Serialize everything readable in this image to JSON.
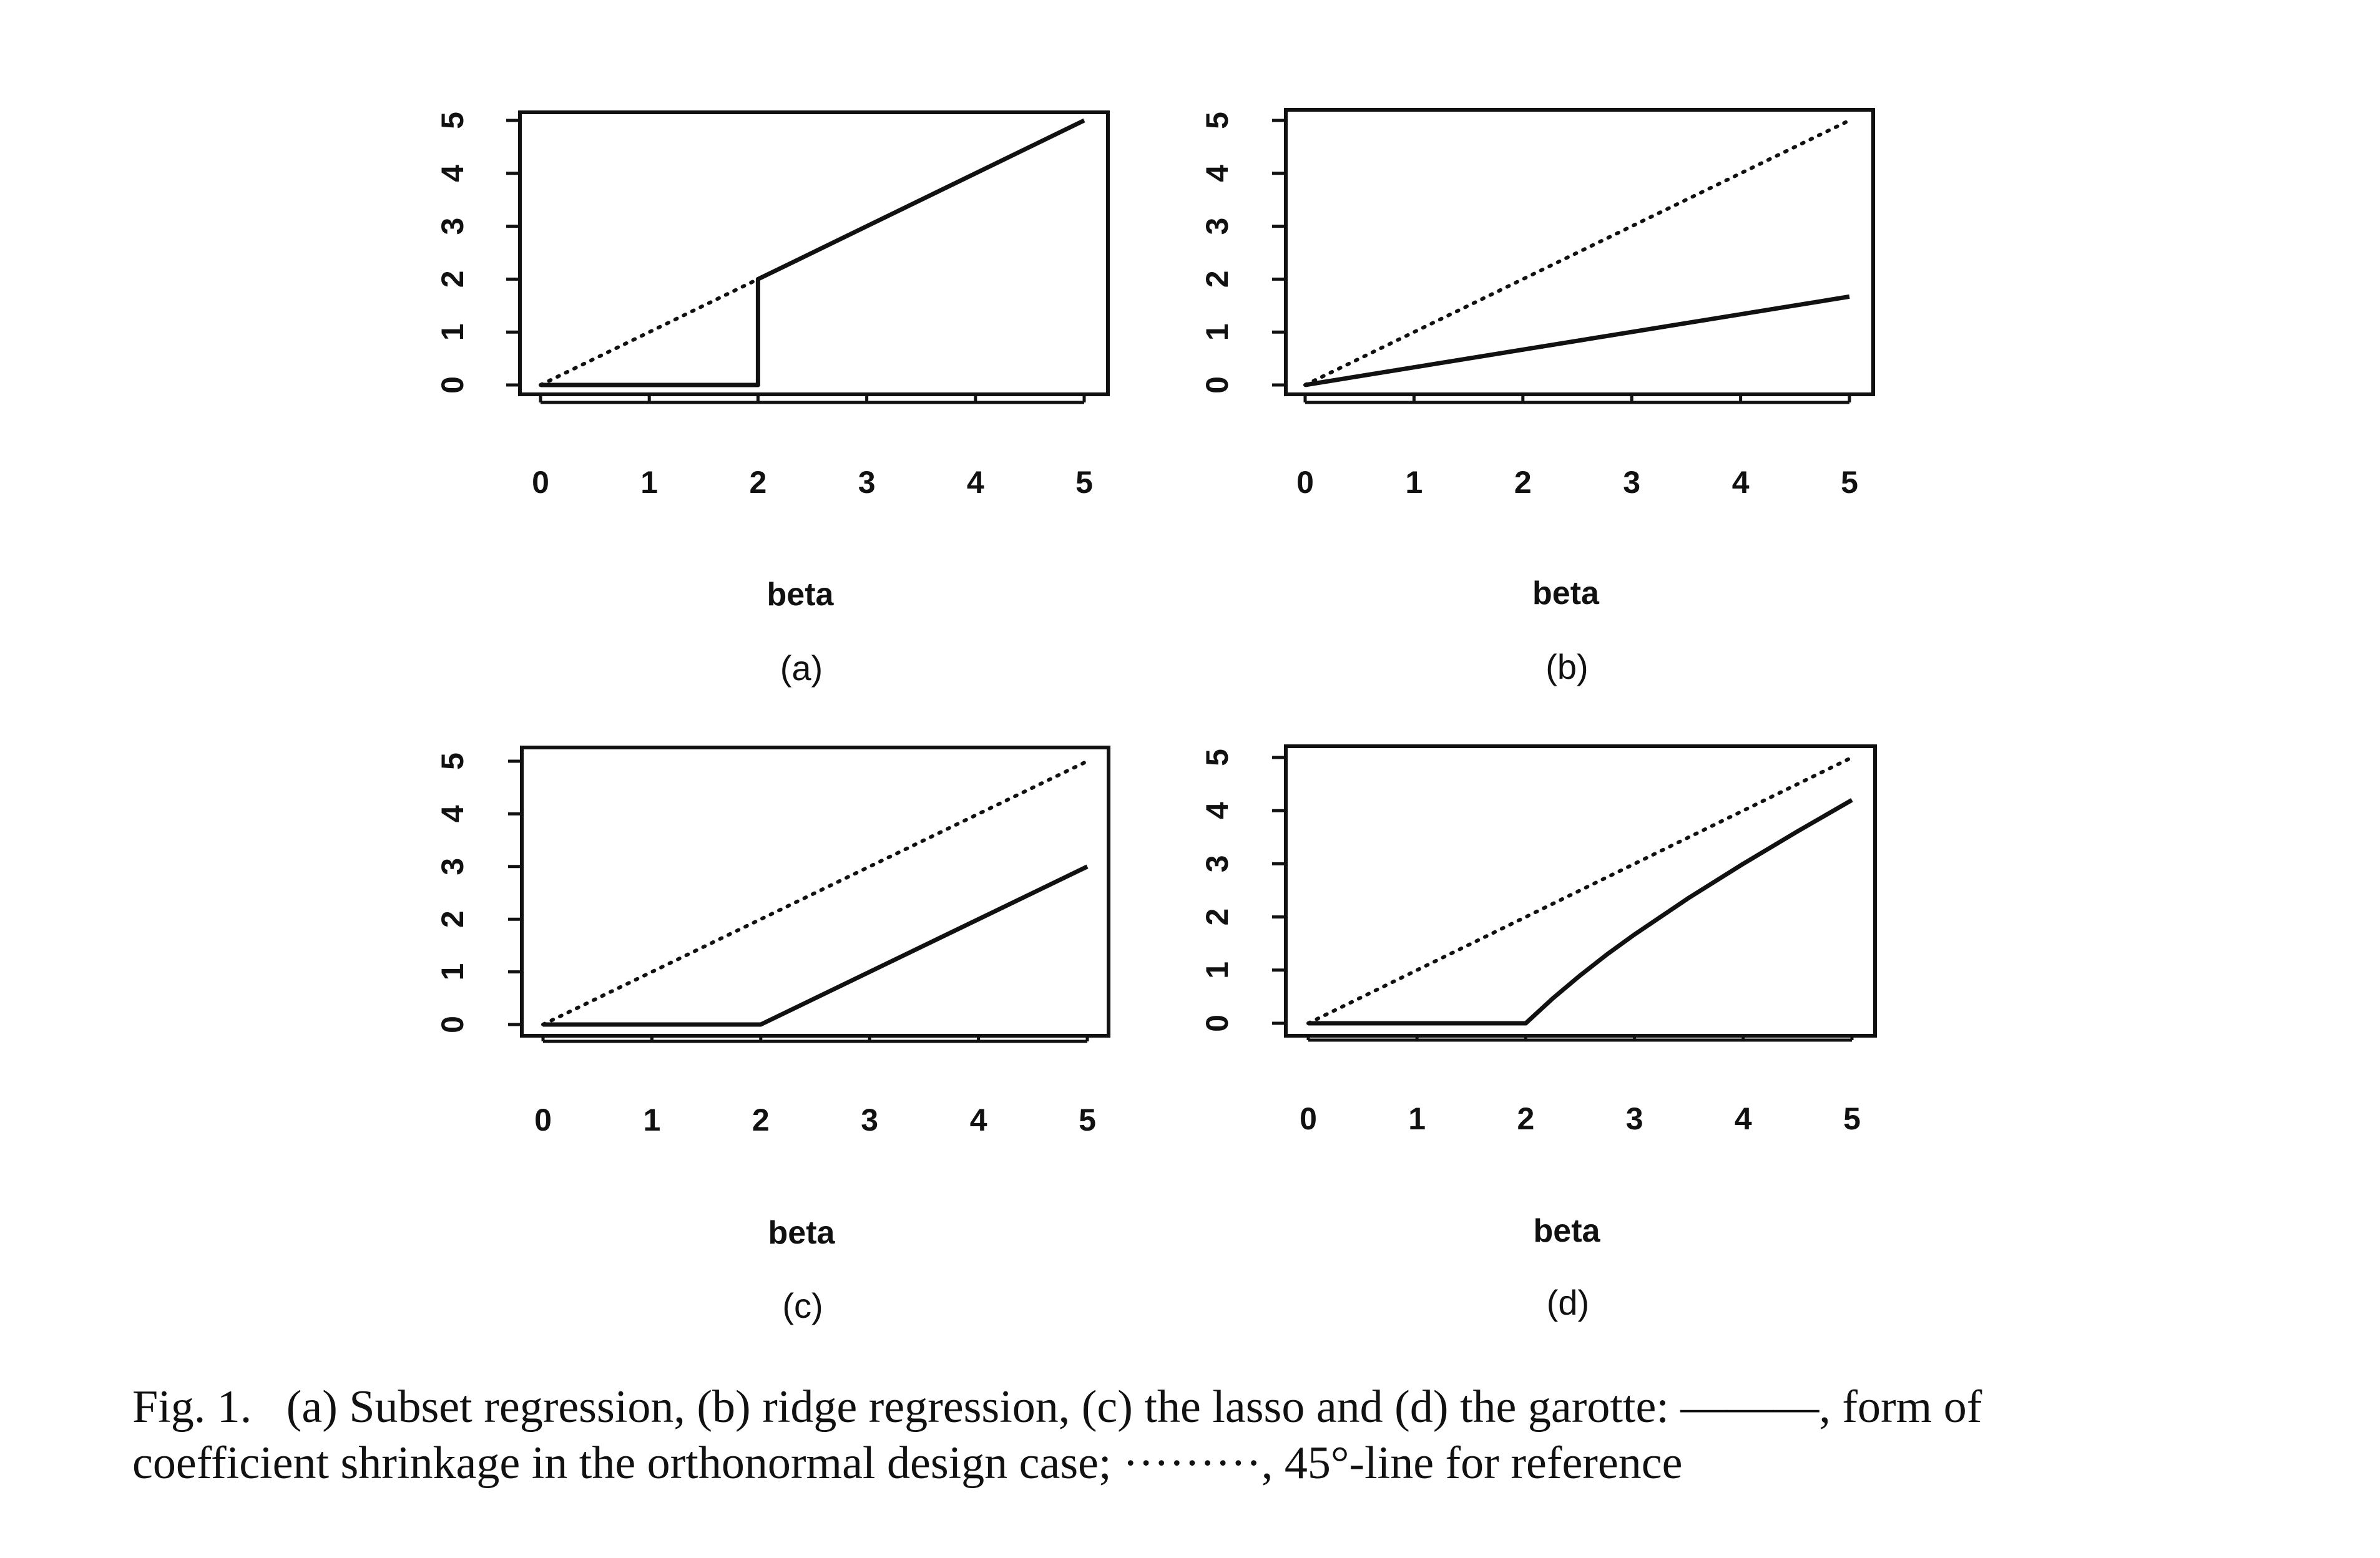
{
  "chart_data": [
    {
      "type": "line",
      "panel_label": "(a)",
      "xlabel": "beta",
      "ylabel": "",
      "xlim": [
        0,
        5
      ],
      "ylim": [
        0,
        5
      ],
      "x_ticks": [
        "0",
        "1",
        "2",
        "3",
        "4",
        "5"
      ],
      "y_ticks": [
        "0",
        "1",
        "2",
        "3",
        "4",
        "5"
      ],
      "series": [
        {
          "style": "solid",
          "x": [
            0,
            2,
            2,
            5
          ],
          "y": [
            0,
            0,
            2,
            5
          ]
        },
        {
          "style": "dotted",
          "x": [
            0,
            5
          ],
          "y": [
            0,
            5
          ]
        }
      ]
    },
    {
      "type": "line",
      "panel_label": "(b)",
      "xlabel": "beta",
      "ylabel": "",
      "xlim": [
        0,
        5
      ],
      "ylim": [
        0,
        5
      ],
      "x_ticks": [
        "0",
        "1",
        "2",
        "3",
        "4",
        "5"
      ],
      "y_ticks": [
        "0",
        "1",
        "2",
        "3",
        "4",
        "5"
      ],
      "series": [
        {
          "style": "solid",
          "x": [
            0,
            5
          ],
          "y": [
            0,
            1.67
          ]
        },
        {
          "style": "dotted",
          "x": [
            0,
            5
          ],
          "y": [
            0,
            5
          ]
        }
      ]
    },
    {
      "type": "line",
      "panel_label": "(c)",
      "xlabel": "beta",
      "ylabel": "",
      "xlim": [
        0,
        5
      ],
      "ylim": [
        0,
        5
      ],
      "x_ticks": [
        "0",
        "1",
        "2",
        "3",
        "4",
        "5"
      ],
      "y_ticks": [
        "0",
        "1",
        "2",
        "3",
        "4",
        "5"
      ],
      "series": [
        {
          "style": "solid",
          "x": [
            0,
            2,
            5
          ],
          "y": [
            0,
            0,
            3
          ]
        },
        {
          "style": "dotted",
          "x": [
            0,
            5
          ],
          "y": [
            0,
            5
          ]
        }
      ]
    },
    {
      "type": "line",
      "panel_label": "(d)",
      "xlabel": "beta",
      "ylabel": "",
      "xlim": [
        0,
        5
      ],
      "ylim": [
        0,
        5
      ],
      "x_ticks": [
        "0",
        "1",
        "2",
        "3",
        "4",
        "5"
      ],
      "y_ticks": [
        "0",
        "1",
        "2",
        "3",
        "4",
        "5"
      ],
      "series": [
        {
          "style": "solid",
          "x": [
            0,
            2,
            2.25,
            2.5,
            2.75,
            3,
            3.5,
            4,
            4.5,
            5
          ],
          "y": [
            0,
            0,
            0.47,
            0.9,
            1.3,
            1.67,
            2.36,
            3.0,
            3.61,
            4.2
          ]
        },
        {
          "style": "dotted",
          "x": [
            0,
            5
          ],
          "y": [
            0,
            5
          ]
        }
      ]
    }
  ],
  "caption": {
    "line1": "Fig. 1.   (a) Subset regression, (b) ridge regression, (c) the lasso and (d) the garotte: ———, form of",
    "line2": "coefficient shrinkage in the orthonormal design case; ·········, 45°-line for reference"
  }
}
